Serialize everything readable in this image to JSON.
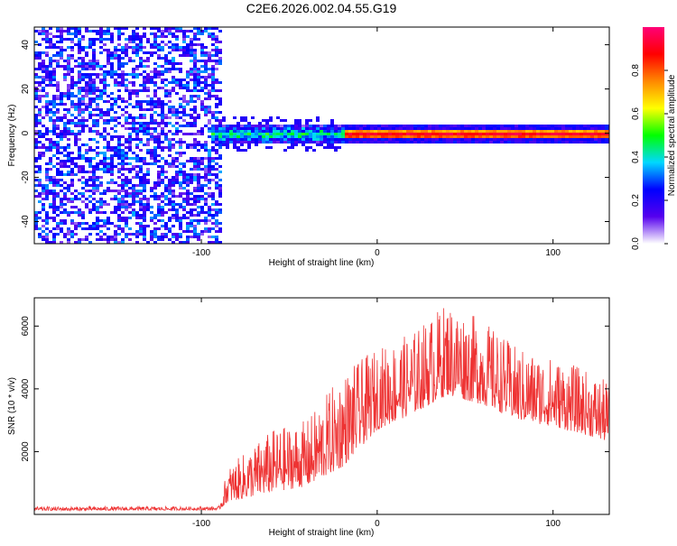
{
  "title": "C2E6.2026.002.04.55.G19",
  "chart_data": [
    {
      "type": "heatmap",
      "xlabel": "Height of straight line (km)",
      "ylabel": "Frequency (Hz)",
      "xlim": [
        -195,
        132
      ],
      "ylim": [
        -50,
        48
      ],
      "x_ticks": [
        -100,
        0,
        100
      ],
      "x_tick_labels": [
        "-100",
        "0",
        "100"
      ],
      "y_ticks": [
        -40,
        -20,
        0,
        20,
        40
      ],
      "y_tick_labels": [
        "-40",
        "-20",
        "0",
        "20",
        "40"
      ],
      "grid": false,
      "regions": [
        {
          "name": "noise",
          "x_range": [
            -195,
            -90
          ],
          "y_range": [
            -50,
            48
          ],
          "level": 0.25
        },
        {
          "name": "signal-onset",
          "x_range": [
            -95,
            -20
          ],
          "y_center": 0,
          "y_halfwidth": 4,
          "level": 0.45
        },
        {
          "name": "carrier",
          "x_range": [
            -20,
            132
          ],
          "y_center": 0,
          "y_halfwidth": 2,
          "level": 0.95
        }
      ],
      "colorbar": {
        "label": "Normalized spectral amplitude",
        "range": [
          0,
          1
        ],
        "ticks": [
          0,
          0.2,
          0.4,
          0.6,
          0.8
        ],
        "tick_labels": [
          "0.0",
          "0.2",
          "0.4",
          "0.6",
          "0.8"
        ],
        "colormap": [
          "#ffffff",
          "#5500ee",
          "#0000ff",
          "#00d8ff",
          "#00ff00",
          "#ffff00",
          "#ff8800",
          "#ff0000",
          "#ff0077"
        ]
      }
    },
    {
      "type": "line",
      "xlabel": "Height of straight line (km)",
      "ylabel": "SNR (10 * v/v)",
      "xlim": [
        -195,
        132
      ],
      "ylim": [
        0,
        6900
      ],
      "x_ticks": [
        -100,
        0,
        100
      ],
      "x_tick_labels": [
        "-100",
        "0",
        "100"
      ],
      "y_ticks": [
        2000,
        4000,
        6000
      ],
      "y_tick_labels": [
        "2000",
        "4000",
        "6000"
      ],
      "grid": false,
      "color": "#ee3333",
      "series": [
        {
          "name": "SNR",
          "envelope": {
            "x": [
              -195,
              -90,
              -85,
              -60,
              -40,
              -20,
              0,
              20,
              40,
              60,
              80,
              100,
              115,
              132
            ],
            "base": [
              120,
              140,
              400,
              700,
              900,
              1500,
              2700,
              3200,
              3800,
              3500,
              3000,
              2800,
              2600,
              2300
            ],
            "peak": [
              250,
              250,
              1500,
              2700,
              3000,
              4500,
              5300,
              5800,
              6800,
              6200,
              5300,
              5000,
              4700,
              4200
            ]
          }
        }
      ]
    }
  ]
}
